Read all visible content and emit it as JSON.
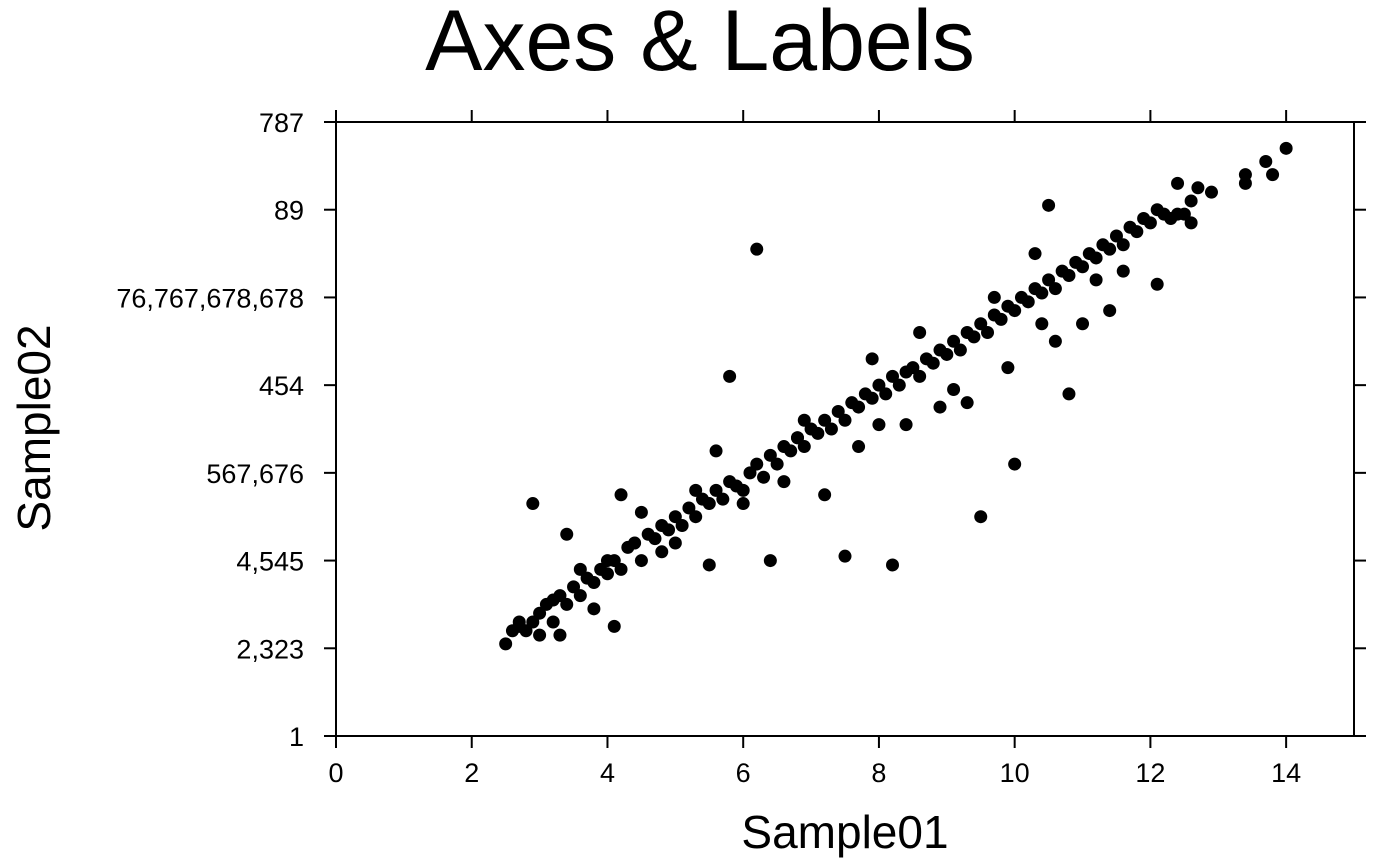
{
  "chart_data": {
    "type": "scatter",
    "title": "Axes & Labels",
    "xlabel": "Sample01",
    "ylabel": "Sample02",
    "xlim": [
      0,
      15
    ],
    "ylim": [
      1,
      8
    ],
    "x_ticks": [
      0,
      2,
      4,
      6,
      8,
      10,
      12,
      14
    ],
    "x_tick_labels": [
      "0",
      "2",
      "4",
      "6",
      "8",
      "10",
      "12",
      "14"
    ],
    "y_ticks": [
      1,
      2,
      3,
      4,
      5,
      6,
      7,
      8
    ],
    "y_tick_labels": [
      "1",
      "2,323",
      "4,545",
      "567,676",
      "454",
      "76,767,678,678",
      "89",
      "787"
    ],
    "grid": false,
    "legend": "none",
    "marker_color": "#000000",
    "series": [
      {
        "points": [
          [
            2.5,
            2.05
          ],
          [
            2.6,
            2.2
          ],
          [
            2.7,
            2.25
          ],
          [
            2.8,
            2.2
          ],
          [
            2.9,
            2.3
          ],
          [
            3.0,
            2.15
          ],
          [
            3.0,
            2.4
          ],
          [
            3.1,
            2.5
          ],
          [
            3.2,
            2.3
          ],
          [
            3.3,
            2.6
          ],
          [
            3.3,
            2.15
          ],
          [
            3.4,
            2.5
          ],
          [
            3.5,
            2.7
          ],
          [
            3.6,
            2.6
          ],
          [
            3.7,
            2.8
          ],
          [
            3.8,
            2.75
          ],
          [
            3.9,
            2.9
          ],
          [
            4.0,
            2.85
          ],
          [
            4.0,
            3.0
          ],
          [
            4.1,
            3.0
          ],
          [
            4.2,
            2.9
          ],
          [
            4.3,
            3.15
          ],
          [
            4.4,
            3.2
          ],
          [
            4.5,
            3.0
          ],
          [
            4.6,
            3.3
          ],
          [
            4.7,
            3.25
          ],
          [
            4.8,
            3.4
          ],
          [
            4.9,
            3.35
          ],
          [
            5.0,
            3.5
          ],
          [
            5.1,
            3.4
          ],
          [
            5.2,
            3.6
          ],
          [
            5.3,
            3.5
          ],
          [
            5.4,
            3.7
          ],
          [
            5.5,
            3.65
          ],
          [
            5.6,
            3.8
          ],
          [
            5.7,
            3.7
          ],
          [
            5.8,
            3.9
          ],
          [
            5.9,
            3.85
          ],
          [
            6.0,
            3.8
          ],
          [
            6.1,
            4.0
          ],
          [
            6.2,
            4.1
          ],
          [
            6.3,
            3.95
          ],
          [
            6.4,
            4.2
          ],
          [
            6.5,
            4.1
          ],
          [
            6.6,
            4.3
          ],
          [
            6.7,
            4.25
          ],
          [
            6.8,
            4.4
          ],
          [
            6.9,
            4.3
          ],
          [
            7.0,
            4.5
          ],
          [
            7.1,
            4.45
          ],
          [
            7.2,
            4.6
          ],
          [
            7.3,
            4.5
          ],
          [
            7.4,
            4.7
          ],
          [
            7.5,
            4.6
          ],
          [
            7.6,
            4.8
          ],
          [
            7.7,
            4.75
          ],
          [
            7.8,
            4.9
          ],
          [
            7.9,
            4.85
          ],
          [
            8.0,
            5.0
          ],
          [
            8.1,
            4.9
          ],
          [
            8.2,
            5.1
          ],
          [
            8.3,
            5.0
          ],
          [
            8.4,
            5.15
          ],
          [
            8.5,
            5.2
          ],
          [
            8.6,
            5.1
          ],
          [
            8.7,
            5.3
          ],
          [
            8.8,
            5.25
          ],
          [
            8.9,
            5.4
          ],
          [
            9.0,
            5.35
          ],
          [
            9.1,
            5.5
          ],
          [
            9.2,
            5.4
          ],
          [
            9.3,
            5.6
          ],
          [
            9.4,
            5.55
          ],
          [
            9.5,
            5.7
          ],
          [
            9.6,
            5.6
          ],
          [
            9.7,
            5.8
          ],
          [
            9.8,
            5.75
          ],
          [
            9.9,
            5.9
          ],
          [
            10.0,
            5.85
          ],
          [
            10.1,
            6.0
          ],
          [
            10.2,
            5.95
          ],
          [
            10.3,
            6.1
          ],
          [
            10.4,
            6.05
          ],
          [
            10.5,
            6.2
          ],
          [
            10.6,
            6.1
          ],
          [
            10.7,
            6.3
          ],
          [
            10.8,
            6.25
          ],
          [
            10.9,
            6.4
          ],
          [
            11.0,
            6.35
          ],
          [
            11.1,
            6.5
          ],
          [
            11.2,
            6.45
          ],
          [
            11.3,
            6.6
          ],
          [
            11.4,
            6.55
          ],
          [
            11.5,
            6.7
          ],
          [
            11.6,
            6.6
          ],
          [
            11.7,
            6.8
          ],
          [
            11.8,
            6.75
          ],
          [
            11.9,
            6.9
          ],
          [
            12.0,
            6.85
          ],
          [
            12.1,
            7.0
          ],
          [
            12.2,
            6.95
          ],
          [
            12.3,
            6.9
          ],
          [
            12.4,
            7.3
          ],
          [
            12.5,
            6.95
          ],
          [
            12.6,
            6.85
          ],
          [
            12.7,
            7.25
          ],
          [
            12.9,
            7.2
          ],
          [
            13.4,
            7.4
          ],
          [
            13.7,
            7.55
          ],
          [
            14.0,
            7.7
          ],
          [
            2.9,
            3.65
          ],
          [
            3.4,
            3.3
          ],
          [
            4.2,
            3.75
          ],
          [
            4.1,
            2.25
          ],
          [
            5.5,
            2.95
          ],
          [
            6.2,
            6.55
          ],
          [
            5.8,
            5.1
          ],
          [
            6.4,
            3.0
          ],
          [
            7.5,
            3.05
          ],
          [
            8.2,
            2.95
          ],
          [
            9.5,
            3.5
          ],
          [
            10.0,
            4.1
          ],
          [
            10.8,
            4.9
          ],
          [
            10.5,
            7.05
          ],
          [
            12.1,
            6.15
          ],
          [
            11.4,
            5.85
          ],
          [
            12.4,
            6.95
          ],
          [
            13.8,
            7.4
          ],
          [
            11.0,
            5.7
          ],
          [
            9.3,
            4.8
          ],
          [
            7.2,
            3.75
          ],
          [
            6.8,
            4.4
          ],
          [
            5.6,
            4.25
          ],
          [
            8.6,
            5.6
          ],
          [
            9.7,
            6.0
          ],
          [
            6.0,
            3.65
          ],
          [
            4.5,
            3.55
          ],
          [
            3.2,
            2.55
          ],
          [
            7.9,
            5.3
          ],
          [
            10.3,
            6.5
          ],
          [
            5.0,
            3.2
          ],
          [
            6.6,
            3.9
          ],
          [
            8.4,
            4.55
          ],
          [
            9.9,
            5.2
          ],
          [
            11.2,
            6.2
          ],
          [
            3.8,
            2.45
          ],
          [
            4.8,
            3.1
          ],
          [
            7.7,
            4.3
          ],
          [
            8.9,
            4.75
          ],
          [
            10.6,
            5.5
          ],
          [
            12.6,
            7.1
          ],
          [
            13.4,
            7.3
          ],
          [
            2.7,
            2.3
          ],
          [
            3.6,
            2.9
          ],
          [
            5.3,
            3.8
          ],
          [
            6.9,
            4.6
          ],
          [
            8.0,
            4.55
          ],
          [
            9.1,
            4.95
          ],
          [
            10.4,
            5.7
          ],
          [
            11.6,
            6.3
          ]
        ]
      }
    ]
  }
}
